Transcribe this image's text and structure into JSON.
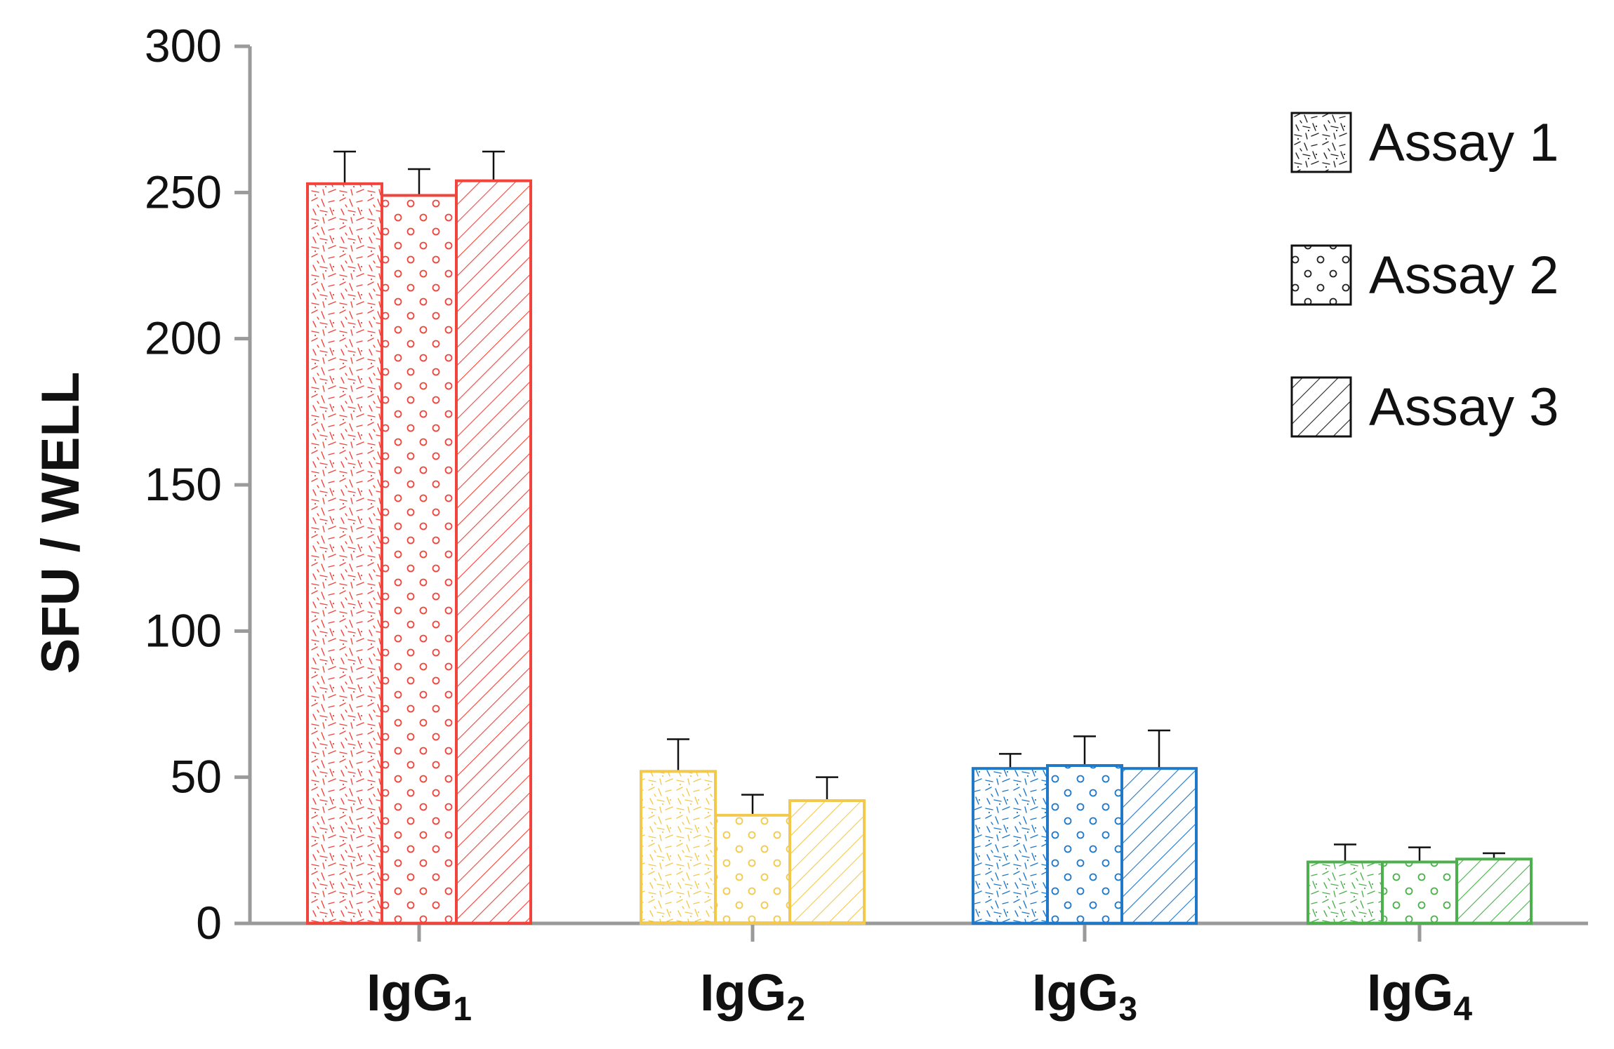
{
  "chart_data": {
    "type": "bar",
    "title": "",
    "xlabel": "",
    "ylabel": "SFU / WELL",
    "ylim": [
      0,
      300
    ],
    "yticks": [
      "0",
      "50",
      "100",
      "150",
      "200",
      "250",
      "300"
    ],
    "categories": [
      {
        "base": "IgG",
        "sub": "1"
      },
      {
        "base": "IgG",
        "sub": "2"
      },
      {
        "base": "IgG",
        "sub": "3"
      },
      {
        "base": "IgG",
        "sub": "4"
      }
    ],
    "category_colors": [
      "#f0443c",
      "#f2c94c",
      "#1f78c8",
      "#4cb04c"
    ],
    "series": [
      {
        "name": "Assay 1",
        "pattern": "dashes",
        "values": [
          253,
          52,
          53,
          21
        ],
        "errors": [
          11,
          11,
          5,
          6
        ]
      },
      {
        "name": "Assay 2",
        "pattern": "circles",
        "values": [
          249,
          37,
          54,
          21
        ],
        "errors": [
          9,
          7,
          10,
          5
        ]
      },
      {
        "name": "Assay 3",
        "pattern": "hatch",
        "values": [
          254,
          42,
          53,
          22
        ],
        "errors": [
          10,
          8,
          13,
          2
        ]
      }
    ],
    "legend": {
      "position": "top-right"
    },
    "grid": false
  }
}
